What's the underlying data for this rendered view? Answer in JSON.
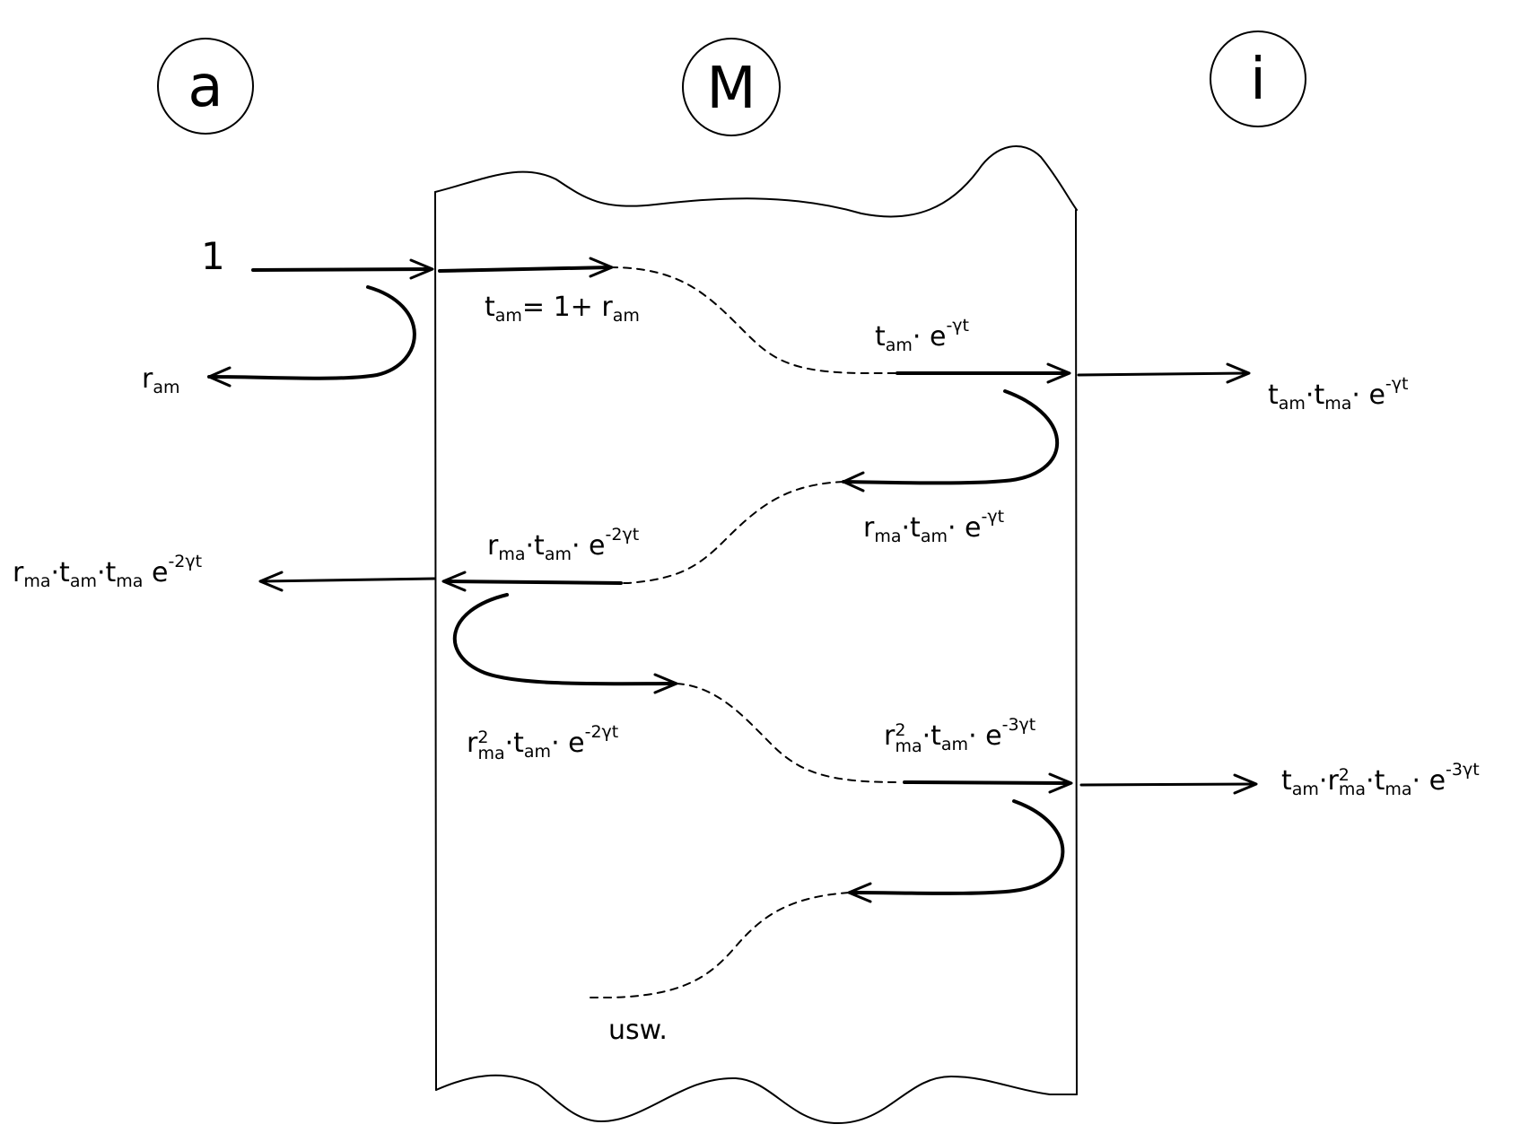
{
  "regions": {
    "left": "a",
    "middle": "M",
    "right": "i"
  },
  "labels": {
    "incident": "1",
    "reflect_0": [
      "r",
      "am",
      "",
      ""
    ],
    "eq_t": [
      "t",
      "am",
      "= 1+ ",
      "r",
      "am"
    ],
    "t_att1": [
      "t",
      "am",
      "· e",
      "-γt"
    ],
    "out_1": [
      "t",
      "am",
      "·t",
      "ma",
      "· e",
      "-γt"
    ],
    "back_1": [
      "r",
      "ma",
      "·t",
      "am",
      "· e",
      "-γt"
    ],
    "back_2": [
      "r",
      "ma",
      "·t",
      "am",
      "· e",
      "-2γt"
    ],
    "out_left": [
      "r",
      "ma",
      "·t",
      "am",
      "·t",
      "ma",
      " e",
      "-2γt"
    ],
    "fwd_2a": [
      "r",
      "2",
      "ma",
      "·t",
      "am",
      "· e",
      "-2γt"
    ],
    "fwd_2b": [
      "r",
      "2",
      "ma",
      "·t",
      "am",
      "· e",
      "-3γt"
    ],
    "out_2": [
      "t",
      "am",
      "·r",
      "2",
      "ma",
      "·t",
      "ma",
      "· e",
      "-3γt"
    ],
    "etc": "usw."
  }
}
